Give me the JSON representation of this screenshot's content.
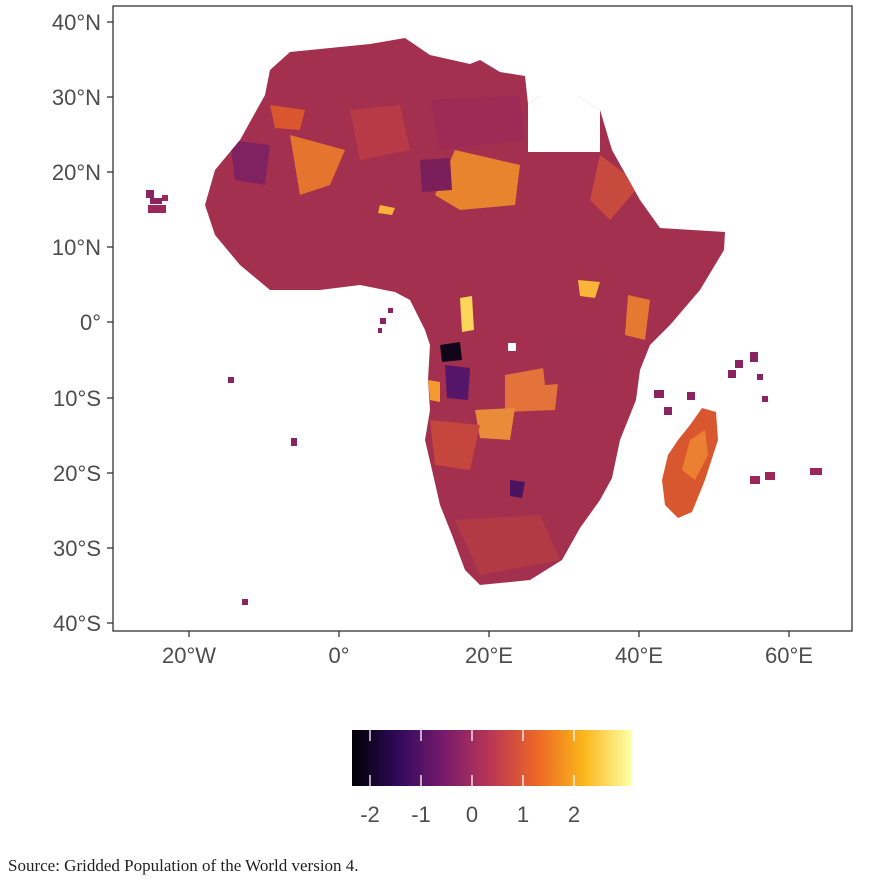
{
  "map": {
    "axes": {
      "x_ticks": [
        "20°W",
        "0°",
        "20°E",
        "40°E",
        "60°E"
      ],
      "y_ticks": [
        "40°N",
        "30°N",
        "20°N",
        "10°N",
        "0°",
        "10°S",
        "20°S",
        "30°S",
        "40°S"
      ],
      "x_range": [
        -30,
        68
      ],
      "y_range": [
        -41,
        42
      ]
    },
    "colorscale": [
      "#000004",
      "#320a5e",
      "#781b6c",
      "#bc3754",
      "#ed6925",
      "#fbb61a",
      "#fcffa4"
    ],
    "legend": {
      "ticks": [
        "-2",
        "-1",
        "0",
        "1",
        "2"
      ],
      "range": [
        -2.5,
        3.0
      ]
    }
  },
  "caption": "Source: Gridded Population of the World version 4."
}
